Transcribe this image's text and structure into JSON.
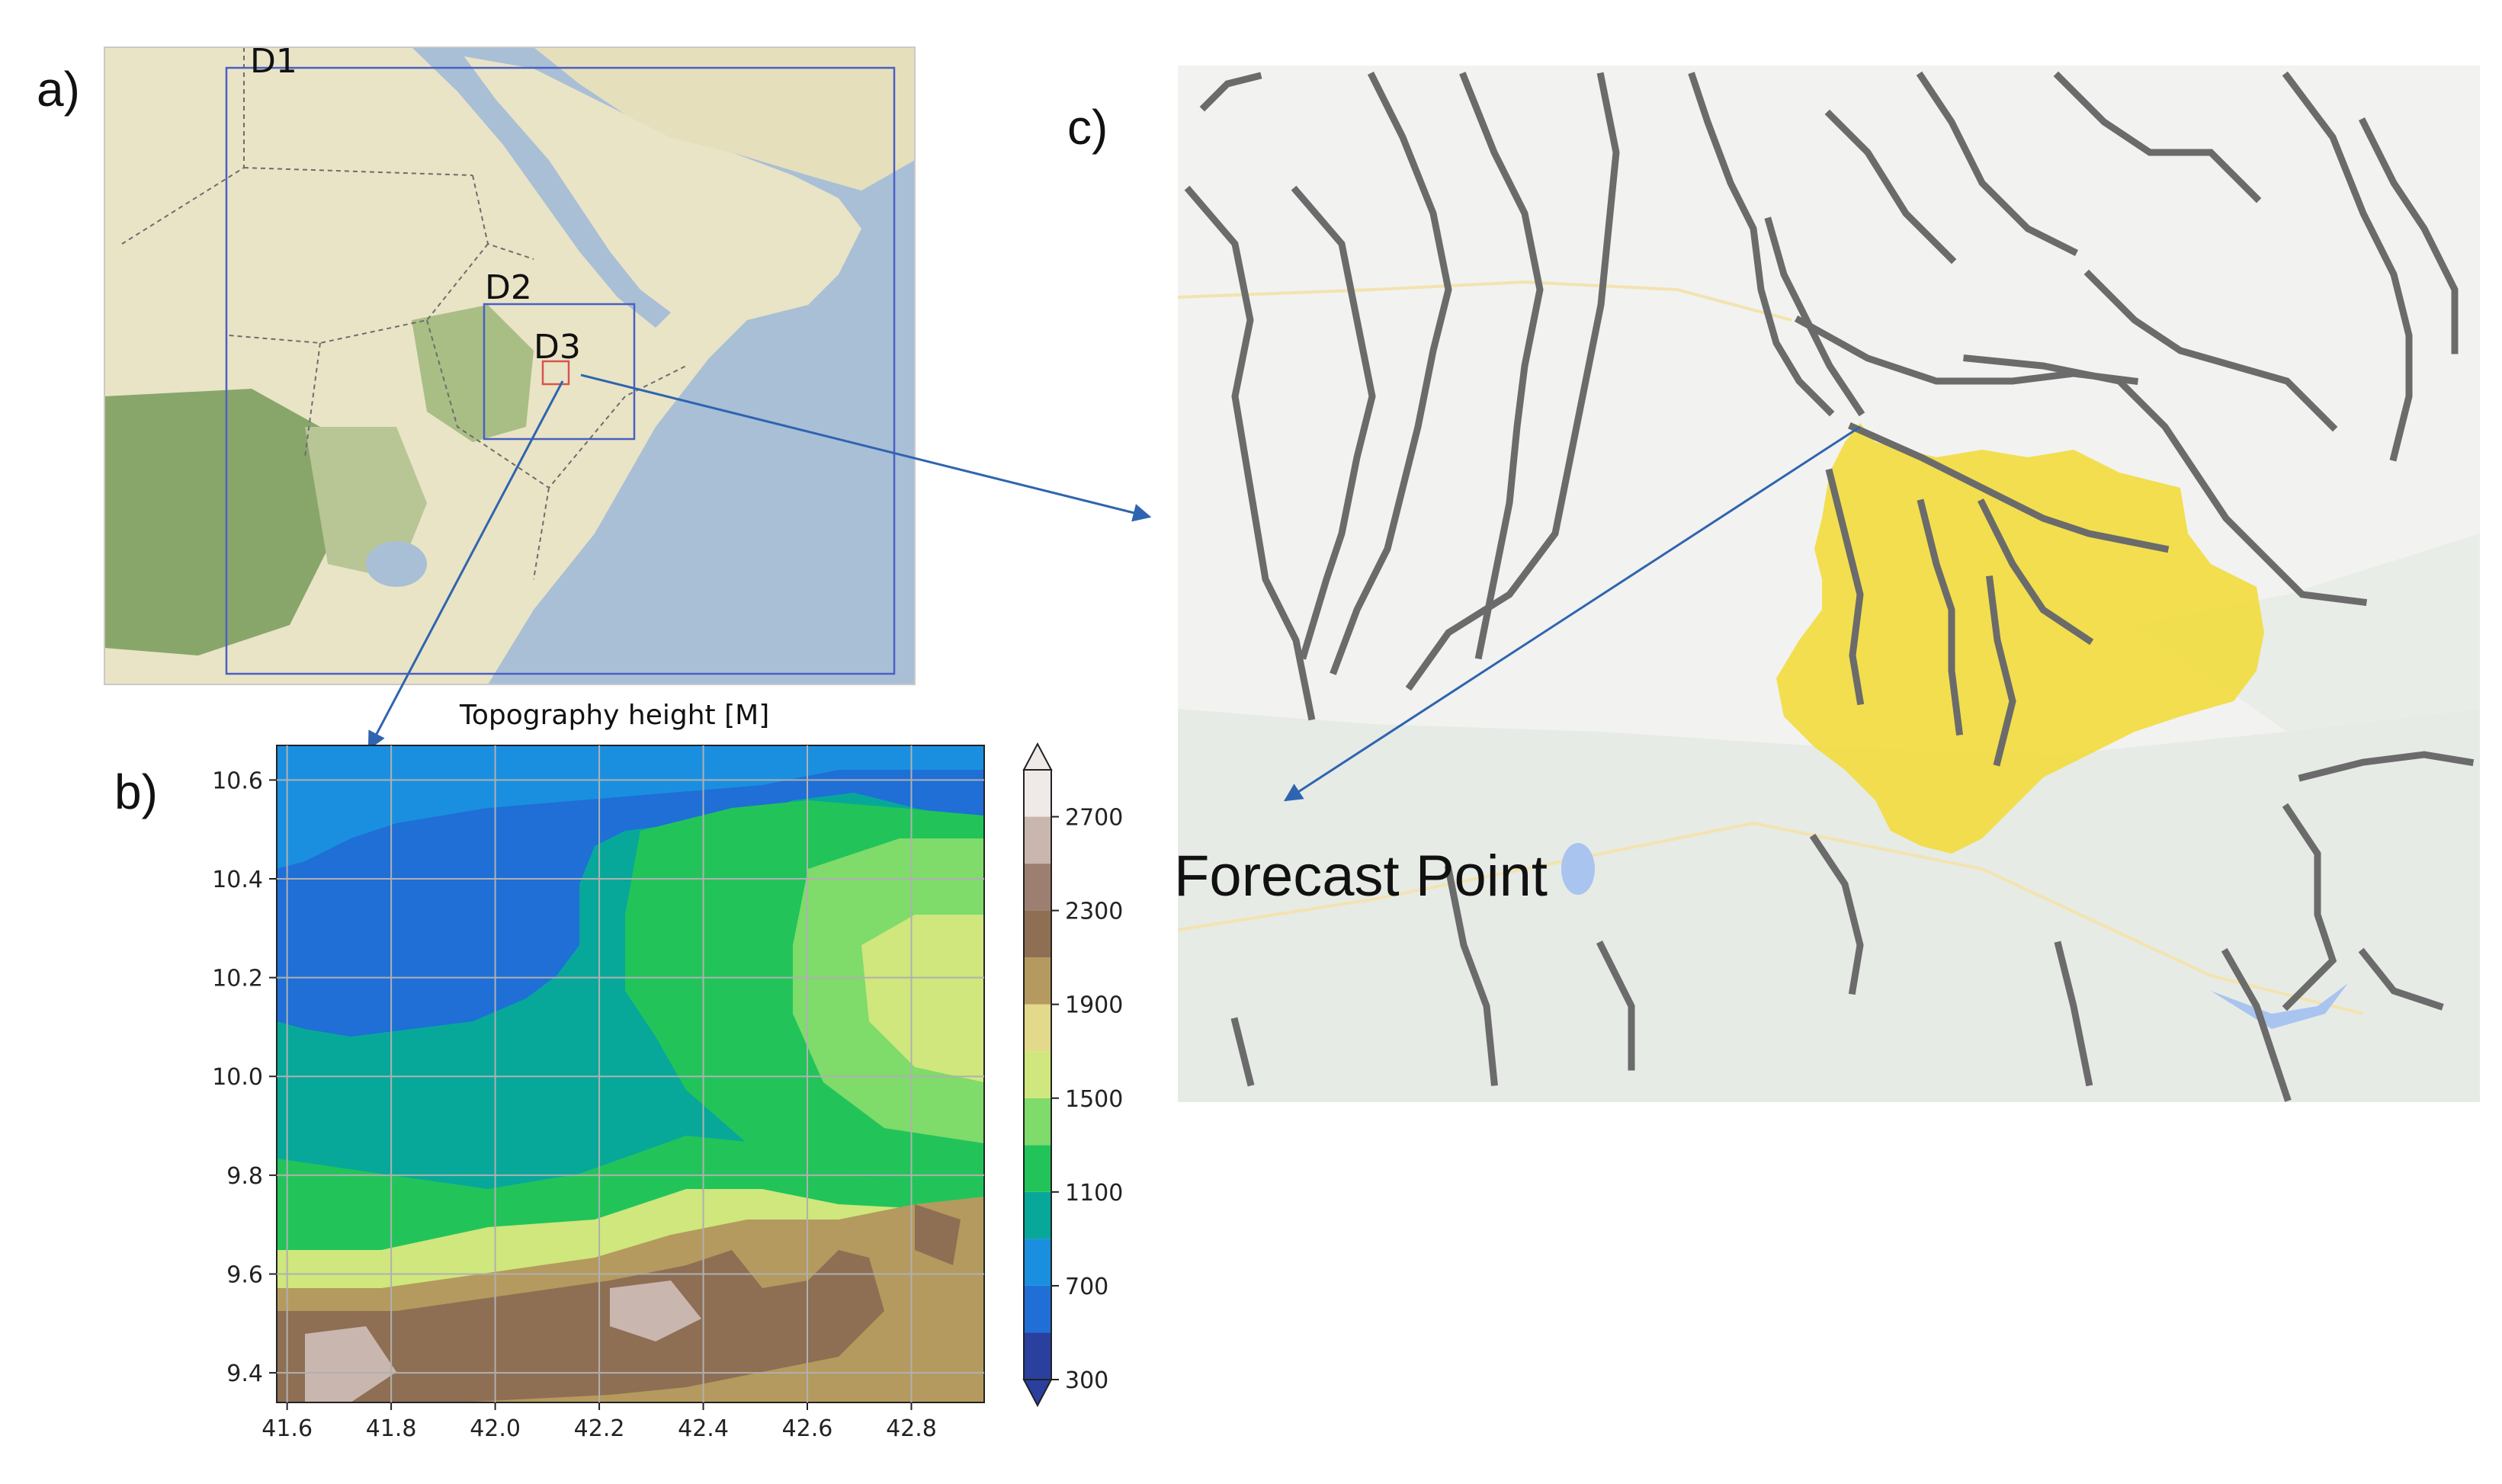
{
  "panels": {
    "a": "a)",
    "b": "b)",
    "c": "c)"
  },
  "domains": {
    "d1": "D1",
    "d2": "D2",
    "d3": "D3"
  },
  "forecast_point": "Forecast Point",
  "colors": {
    "domain_box": "#4b5fc4",
    "arrow": "#2f64b0",
    "d3_box": "#d9534f",
    "catchment": "#f2db3d",
    "river": "#6b6b6b"
  },
  "chart_data": {
    "type": "heatmap",
    "title": "Topography height [M]",
    "x_ticks": [
      "41.6",
      "41.8",
      "42.0",
      "42.2",
      "42.4",
      "42.6",
      "42.8"
    ],
    "y_ticks": [
      "10.6",
      "10.4",
      "10.2",
      "10.0",
      "9.8",
      "9.6",
      "9.4"
    ],
    "xlim": [
      41.58,
      42.94
    ],
    "ylim": [
      9.34,
      10.67
    ],
    "grid": true,
    "colorbar": {
      "ticks": [
        "2700",
        "2300",
        "1900",
        "1500",
        "1100",
        "700",
        "300"
      ],
      "levels": [
        {
          "from": 300,
          "to": 500,
          "color": "#2a3f9e"
        },
        {
          "from": 500,
          "to": 700,
          "color": "#1f6fd6"
        },
        {
          "from": 700,
          "to": 900,
          "color": "#1a8fe0"
        },
        {
          "from": 900,
          "to": 1100,
          "color": "#07a89a"
        },
        {
          "from": 1100,
          "to": 1300,
          "color": "#22c45a"
        },
        {
          "from": 1300,
          "to": 1500,
          "color": "#7fdb6a"
        },
        {
          "from": 1500,
          "to": 1700,
          "color": "#cfe77c"
        },
        {
          "from": 1700,
          "to": 1900,
          "color": "#e3d98a"
        },
        {
          "from": 1900,
          "to": 2100,
          "color": "#b49a5e"
        },
        {
          "from": 2100,
          "to": 2300,
          "color": "#8e6f54"
        },
        {
          "from": 2300,
          "to": 2500,
          "color": "#9c7f70"
        },
        {
          "from": 2500,
          "to": 2700,
          "color": "#c9b6ae"
        },
        {
          "from": 2700,
          "to": 2900,
          "color": "#efe9e7"
        }
      ]
    }
  }
}
